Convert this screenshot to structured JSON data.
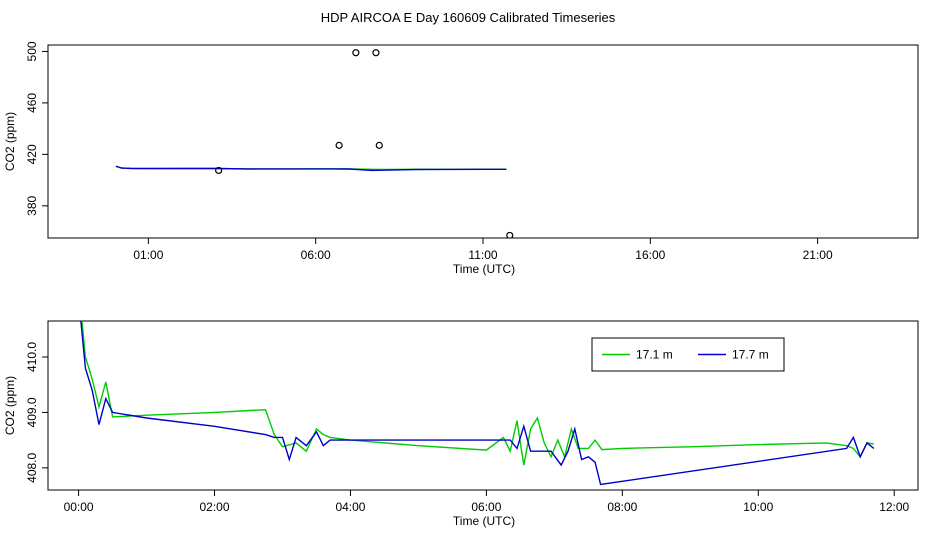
{
  "title": "HDP AIRCOA E  Day 160609  Calibrated Timeseries",
  "chart_data": [
    {
      "type": "line",
      "name": "top-panel",
      "xlabel": "Time (UTC)",
      "ylabel": "CO2 (ppm)",
      "xlim": [
        -2.0,
        24.0
      ],
      "ylim": [
        355,
        505
      ],
      "x_ticks": [
        1,
        6,
        11,
        16,
        21
      ],
      "x_tick_labels": [
        "01:00",
        "06:00",
        "11:00",
        "16:00",
        "21:00"
      ],
      "y_ticks": [
        380,
        420,
        460,
        500
      ],
      "y_tick_labels": [
        "380",
        "420",
        "460",
        "500"
      ],
      "series": [
        {
          "color": "#00cc00",
          "x": [
            0.03,
            0.2,
            0.5,
            1.0,
            2.0,
            3.0,
            4.0,
            5.0,
            6.0,
            6.5,
            7.0,
            7.7,
            8.0,
            9.0,
            10.0,
            11.0,
            11.7
          ],
          "y": [
            410.6,
            409.4,
            409.0,
            408.9,
            409.0,
            409.0,
            408.6,
            408.7,
            408.8,
            408.8,
            408.6,
            408.4,
            408.3,
            408.4,
            408.4,
            408.5,
            408.4
          ]
        },
        {
          "color": "#0000cc",
          "x": [
            0.03,
            0.2,
            0.5,
            1.0,
            2.0,
            3.0,
            4.0,
            5.0,
            6.0,
            6.5,
            7.0,
            7.7,
            8.0,
            9.0,
            10.0,
            11.0,
            11.7
          ],
          "y": [
            410.9,
            409.3,
            409.1,
            409.0,
            409.0,
            409.0,
            408.7,
            408.7,
            408.7,
            408.7,
            408.6,
            407.5,
            407.7,
            408.2,
            408.3,
            408.4,
            408.4
          ]
        },
        {
          "marker": "circle",
          "color": "#000000",
          "x": [
            3.1,
            6.7,
            7.2,
            7.8,
            7.9,
            11.8
          ],
          "y": [
            407.5,
            427.0,
            499.0,
            499.0,
            427.0,
            357.0
          ]
        }
      ]
    },
    {
      "type": "line",
      "name": "bottom-panel",
      "xlabel": "Time (UTC)",
      "ylabel": "CO2 (ppm)",
      "xlim": [
        -0.45,
        12.35
      ],
      "ylim": [
        407.6,
        410.65
      ],
      "x_ticks": [
        0,
        2,
        4,
        6,
        8,
        10,
        12
      ],
      "x_tick_labels": [
        "00:00",
        "02:00",
        "04:00",
        "06:00",
        "08:00",
        "10:00",
        "12:00"
      ],
      "y_ticks": [
        408.0,
        409.0,
        410.0
      ],
      "y_tick_labels": [
        "408.0",
        "409.0",
        "410.0"
      ],
      "legend": "top-right",
      "series": [
        {
          "name": "17.1 m",
          "color": "#00cc00",
          "x": [
            0.03,
            0.1,
            0.2,
            0.3,
            0.4,
            0.5,
            1.0,
            2.0,
            2.75,
            2.88,
            3.0,
            3.2,
            3.35,
            3.5,
            3.6,
            3.7,
            4.0,
            5.0,
            6.0,
            6.25,
            6.35,
            6.45,
            6.55,
            6.65,
            6.75,
            6.85,
            6.95,
            7.05,
            7.15,
            7.25,
            7.35,
            7.5,
            7.6,
            7.7,
            8.0,
            9.0,
            10.0,
            11.0,
            11.3,
            11.4,
            11.5,
            11.6,
            11.7
          ],
          "y": [
            410.9,
            410.0,
            409.6,
            409.1,
            409.55,
            408.92,
            408.95,
            409.0,
            409.05,
            408.6,
            408.38,
            408.45,
            408.3,
            408.7,
            408.6,
            408.55,
            408.5,
            408.4,
            408.32,
            408.55,
            408.3,
            408.85,
            408.05,
            408.7,
            408.9,
            408.45,
            408.2,
            408.5,
            408.2,
            408.7,
            408.35,
            408.35,
            408.5,
            408.33,
            408.35,
            408.38,
            408.42,
            408.45,
            408.4,
            408.35,
            408.2,
            408.45,
            408.43
          ]
        },
        {
          "name": "17.7 m",
          "color": "#0000cc",
          "x": [
            0.03,
            0.1,
            0.2,
            0.3,
            0.4,
            0.5,
            1.0,
            2.0,
            2.75,
            2.88,
            3.0,
            3.1,
            3.2,
            3.35,
            3.5,
            3.6,
            3.7,
            4.0,
            5.0,
            6.0,
            6.35,
            6.45,
            6.55,
            6.65,
            6.8,
            6.95,
            7.1,
            7.2,
            7.3,
            7.4,
            7.5,
            7.6,
            7.68,
            11.3,
            11.4,
            11.5,
            11.6,
            11.7
          ],
          "y": [
            410.7,
            409.8,
            409.4,
            408.78,
            409.25,
            409.0,
            408.9,
            408.75,
            408.6,
            408.55,
            408.55,
            408.15,
            408.55,
            408.4,
            408.65,
            408.4,
            408.5,
            408.5,
            408.5,
            408.5,
            408.5,
            408.35,
            408.75,
            408.3,
            408.3,
            408.3,
            408.05,
            408.3,
            408.7,
            408.15,
            408.2,
            408.1,
            407.7,
            408.35,
            408.55,
            408.2,
            408.45,
            408.35
          ]
        }
      ]
    }
  ]
}
